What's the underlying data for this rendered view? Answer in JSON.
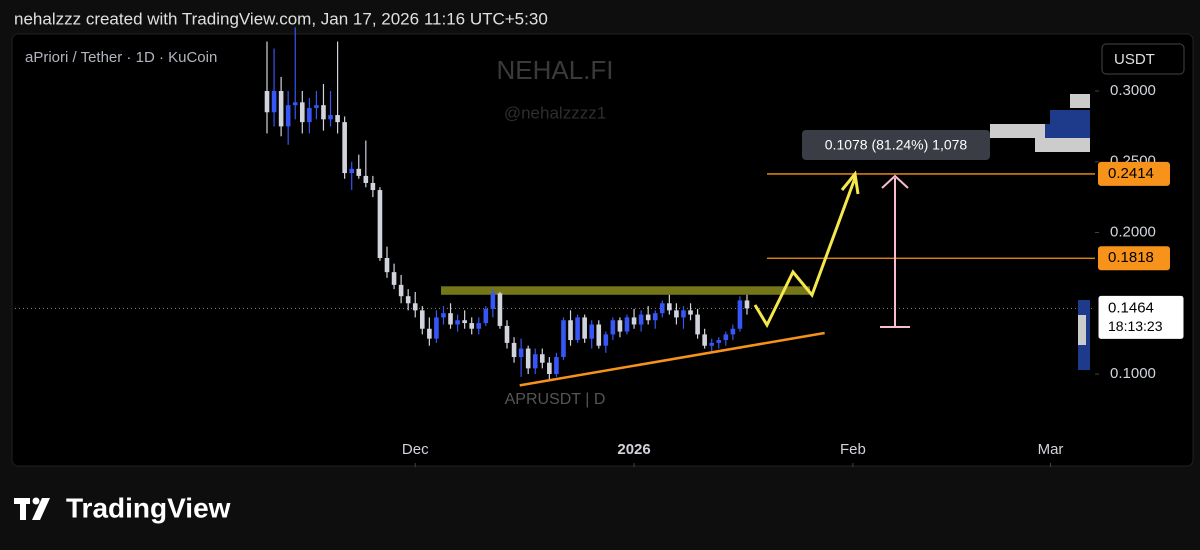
{
  "header": "nehalzzz created with TradingView.com, Jan 17, 2026 11:16 UTC+5:30",
  "footer_brand": "TradingView",
  "chart_data": {
    "type": "candlestick",
    "symbol": "aPriori / Tether · 1D · KuCoin",
    "watermark": "NEHAL.FI",
    "watermark_handle": "@nehalzzzz1",
    "watermark_symbol": "APRUSDT | D",
    "currency": "USDT",
    "up_color": "#3656f5",
    "down_color": "#d1d4dc",
    "ohlc": {
      "open": [
        0.3,
        0.285,
        0.3,
        0.275,
        0.29,
        0.292,
        0.278,
        0.288,
        0.29,
        0.28,
        0.283,
        0.278,
        0.242,
        0.245,
        0.24,
        0.235,
        0.23,
        0.182,
        0.172,
        0.163,
        0.155,
        0.15,
        0.145,
        0.132,
        0.125,
        0.14,
        0.143,
        0.135,
        0.138,
        0.136,
        0.132,
        0.136,
        0.146,
        0.157,
        0.134,
        0.122,
        0.112,
        0.118,
        0.104,
        0.114,
        0.108,
        0.1,
        0.112,
        0.138,
        0.124,
        0.14,
        0.125,
        0.135,
        0.12,
        0.128,
        0.138,
        0.13,
        0.14,
        0.135,
        0.142,
        0.138,
        0.143,
        0.15,
        0.145,
        0.14,
        0.145,
        0.142,
        0.128,
        0.12,
        0.122,
        0.124,
        0.128,
        0.132,
        0.152
      ],
      "high": [
        0.335,
        0.33,
        0.31,
        0.3,
        0.345,
        0.3,
        0.295,
        0.3,
        0.305,
        0.3,
        0.335,
        0.282,
        0.25,
        0.255,
        0.265,
        0.24,
        0.232,
        0.19,
        0.178,
        0.17,
        0.16,
        0.158,
        0.148,
        0.14,
        0.145,
        0.148,
        0.15,
        0.142,
        0.145,
        0.14,
        0.14,
        0.148,
        0.16,
        0.158,
        0.138,
        0.126,
        0.125,
        0.12,
        0.118,
        0.118,
        0.112,
        0.115,
        0.14,
        0.145,
        0.142,
        0.142,
        0.138,
        0.138,
        0.13,
        0.14,
        0.14,
        0.142,
        0.146,
        0.145,
        0.148,
        0.145,
        0.152,
        0.156,
        0.15,
        0.148,
        0.15,
        0.146,
        0.132,
        0.125,
        0.126,
        0.13,
        0.135,
        0.155,
        0.156
      ],
      "low": [
        0.27,
        0.275,
        0.268,
        0.262,
        0.28,
        0.27,
        0.27,
        0.28,
        0.272,
        0.275,
        0.27,
        0.238,
        0.23,
        0.238,
        0.232,
        0.225,
        0.18,
        0.168,
        0.16,
        0.15,
        0.145,
        0.14,
        0.128,
        0.12,
        0.122,
        0.135,
        0.132,
        0.13,
        0.132,
        0.128,
        0.128,
        0.134,
        0.14,
        0.132,
        0.118,
        0.108,
        0.098,
        0.1,
        0.1,
        0.104,
        0.096,
        0.098,
        0.11,
        0.12,
        0.122,
        0.122,
        0.118,
        0.118,
        0.115,
        0.124,
        0.126,
        0.128,
        0.132,
        0.13,
        0.135,
        0.132,
        0.14,
        0.142,
        0.135,
        0.132,
        0.138,
        0.125,
        0.118,
        0.116,
        0.118,
        0.12,
        0.124,
        0.13,
        0.142
      ],
      "close": [
        0.285,
        0.3,
        0.275,
        0.29,
        0.292,
        0.278,
        0.288,
        0.29,
        0.28,
        0.283,
        0.278,
        0.242,
        0.245,
        0.24,
        0.235,
        0.23,
        0.182,
        0.172,
        0.163,
        0.155,
        0.15,
        0.145,
        0.132,
        0.125,
        0.14,
        0.143,
        0.135,
        0.138,
        0.136,
        0.132,
        0.136,
        0.146,
        0.157,
        0.134,
        0.122,
        0.112,
        0.118,
        0.104,
        0.114,
        0.108,
        0.1,
        0.112,
        0.138,
        0.124,
        0.14,
        0.125,
        0.135,
        0.12,
        0.128,
        0.138,
        0.13,
        0.14,
        0.135,
        0.142,
        0.138,
        0.143,
        0.15,
        0.145,
        0.14,
        0.145,
        0.142,
        0.128,
        0.12,
        0.122,
        0.124,
        0.128,
        0.132,
        0.152,
        0.1464
      ]
    },
    "xlim": [
      -35.7,
      117.3
    ],
    "xticks": [
      {
        "value": 21,
        "label": "Dec"
      },
      {
        "value": 52,
        "label": "2026"
      },
      {
        "value": 83,
        "label": "Feb"
      },
      {
        "value": 111,
        "label": "Mar"
      }
    ],
    "ylim": [
      0.0343,
      0.3417
    ],
    "yticks": [
      {
        "value": 0.1,
        "label": "0.1000"
      },
      {
        "value": 0.2,
        "label": "0.2000"
      },
      {
        "value": 0.25,
        "label": "0.2500"
      },
      {
        "value": 0.3,
        "label": "0.3000"
      }
    ],
    "price_levels": [
      {
        "value": 0.2414,
        "color": "#f7931a"
      },
      {
        "value": 0.1818,
        "color": "#f7931a"
      }
    ],
    "last_price": 0.1464,
    "countdown": "18:13:23",
    "resistance_zone": [
      0.156,
      0.162
    ],
    "trendline": {
      "x": [
        35.8,
        79
      ],
      "y": [
        0.092,
        0.129
      ],
      "color": "#f7931a"
    },
    "measure_label": "0.1078 (81.24%) 1,078"
  }
}
